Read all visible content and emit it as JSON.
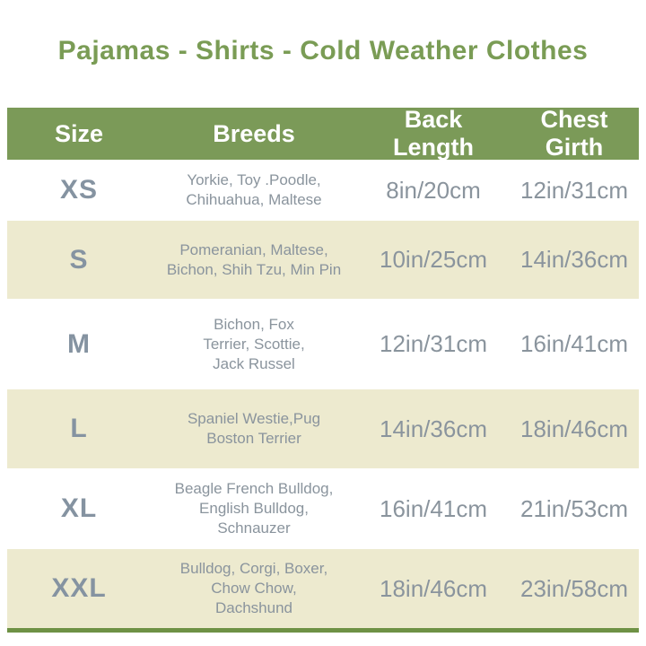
{
  "title": "Pajamas - Shirts - Cold Weather Clothes",
  "table": {
    "headers": [
      "Size",
      "Breeds",
      "Back Length",
      "Chest Girth"
    ],
    "rows": [
      {
        "size": "XS",
        "breeds": "Yorkie, Toy .Poodle,\nChihuahua, Maltese",
        "back_length": "8in/20cm",
        "chest_girth": "12in/31cm"
      },
      {
        "size": "S",
        "breeds": "Pomeranian, Maltese,\nBichon, Shih Tzu, Min Pin",
        "back_length": "10in/25cm",
        "chest_girth": "14in/36cm"
      },
      {
        "size": "M",
        "breeds": "Bichon, Fox\nTerrier, Scottie,\nJack Russel",
        "back_length": "12in/31cm",
        "chest_girth": "16in/41cm"
      },
      {
        "size": "L",
        "breeds": "Spaniel Westie,Pug\nBoston Terrier",
        "back_length": "14in/36cm",
        "chest_girth": "18in/46cm"
      },
      {
        "size": "XL",
        "breeds": "Beagle French Bulldog,\nEnglish Bulldog,\nSchnauzer",
        "back_length": "16in/41cm",
        "chest_girth": "21in/53cm"
      },
      {
        "size": "XXL",
        "breeds": "Bulldog, Corgi, Boxer,\nChow Chow,\nDachshund",
        "back_length": "18in/46cm",
        "chest_girth": "23in/58cm"
      }
    ]
  },
  "colors": {
    "title_green": "#7a9c55",
    "header_bg_green": "#7b9a58",
    "header_text": "#ffffff",
    "row_alt_beige": "#edeacf",
    "row_white": "#ffffff",
    "body_text_gray": "#8a949d",
    "size_text_gray": "#8593a1",
    "bottom_line_green": "#6e9145"
  },
  "chart_data": {
    "type": "table",
    "title": "Pajamas - Shirts - Cold Weather Clothes",
    "columns": [
      "Size",
      "Breeds",
      "Back Length",
      "Chest Girth"
    ],
    "rows": [
      [
        "XS",
        "Yorkie, Toy .Poodle, Chihuahua, Maltese",
        "8in/20cm",
        "12in/31cm"
      ],
      [
        "S",
        "Pomeranian, Maltese, Bichon, Shih Tzu, Min Pin",
        "10in/25cm",
        "14in/36cm"
      ],
      [
        "M",
        "Bichon, Fox Terrier, Scottie, Jack Russel",
        "12in/31cm",
        "16in/41cm"
      ],
      [
        "L",
        "Spaniel Westie,Pug Boston Terrier",
        "14in/36cm",
        "18in/46cm"
      ],
      [
        "XL",
        "Beagle French Bulldog, English Bulldog, Schnauzer",
        "16in/41cm",
        "21in/53cm"
      ],
      [
        "XXL",
        "Bulldog, Corgi, Boxer, Chow Chow, Dachshund",
        "18in/46cm",
        "23in/58cm"
      ]
    ],
    "layout": {
      "header_position": "top",
      "row_striping": "white / beige alternating starting white",
      "bottom_border": true
    }
  }
}
